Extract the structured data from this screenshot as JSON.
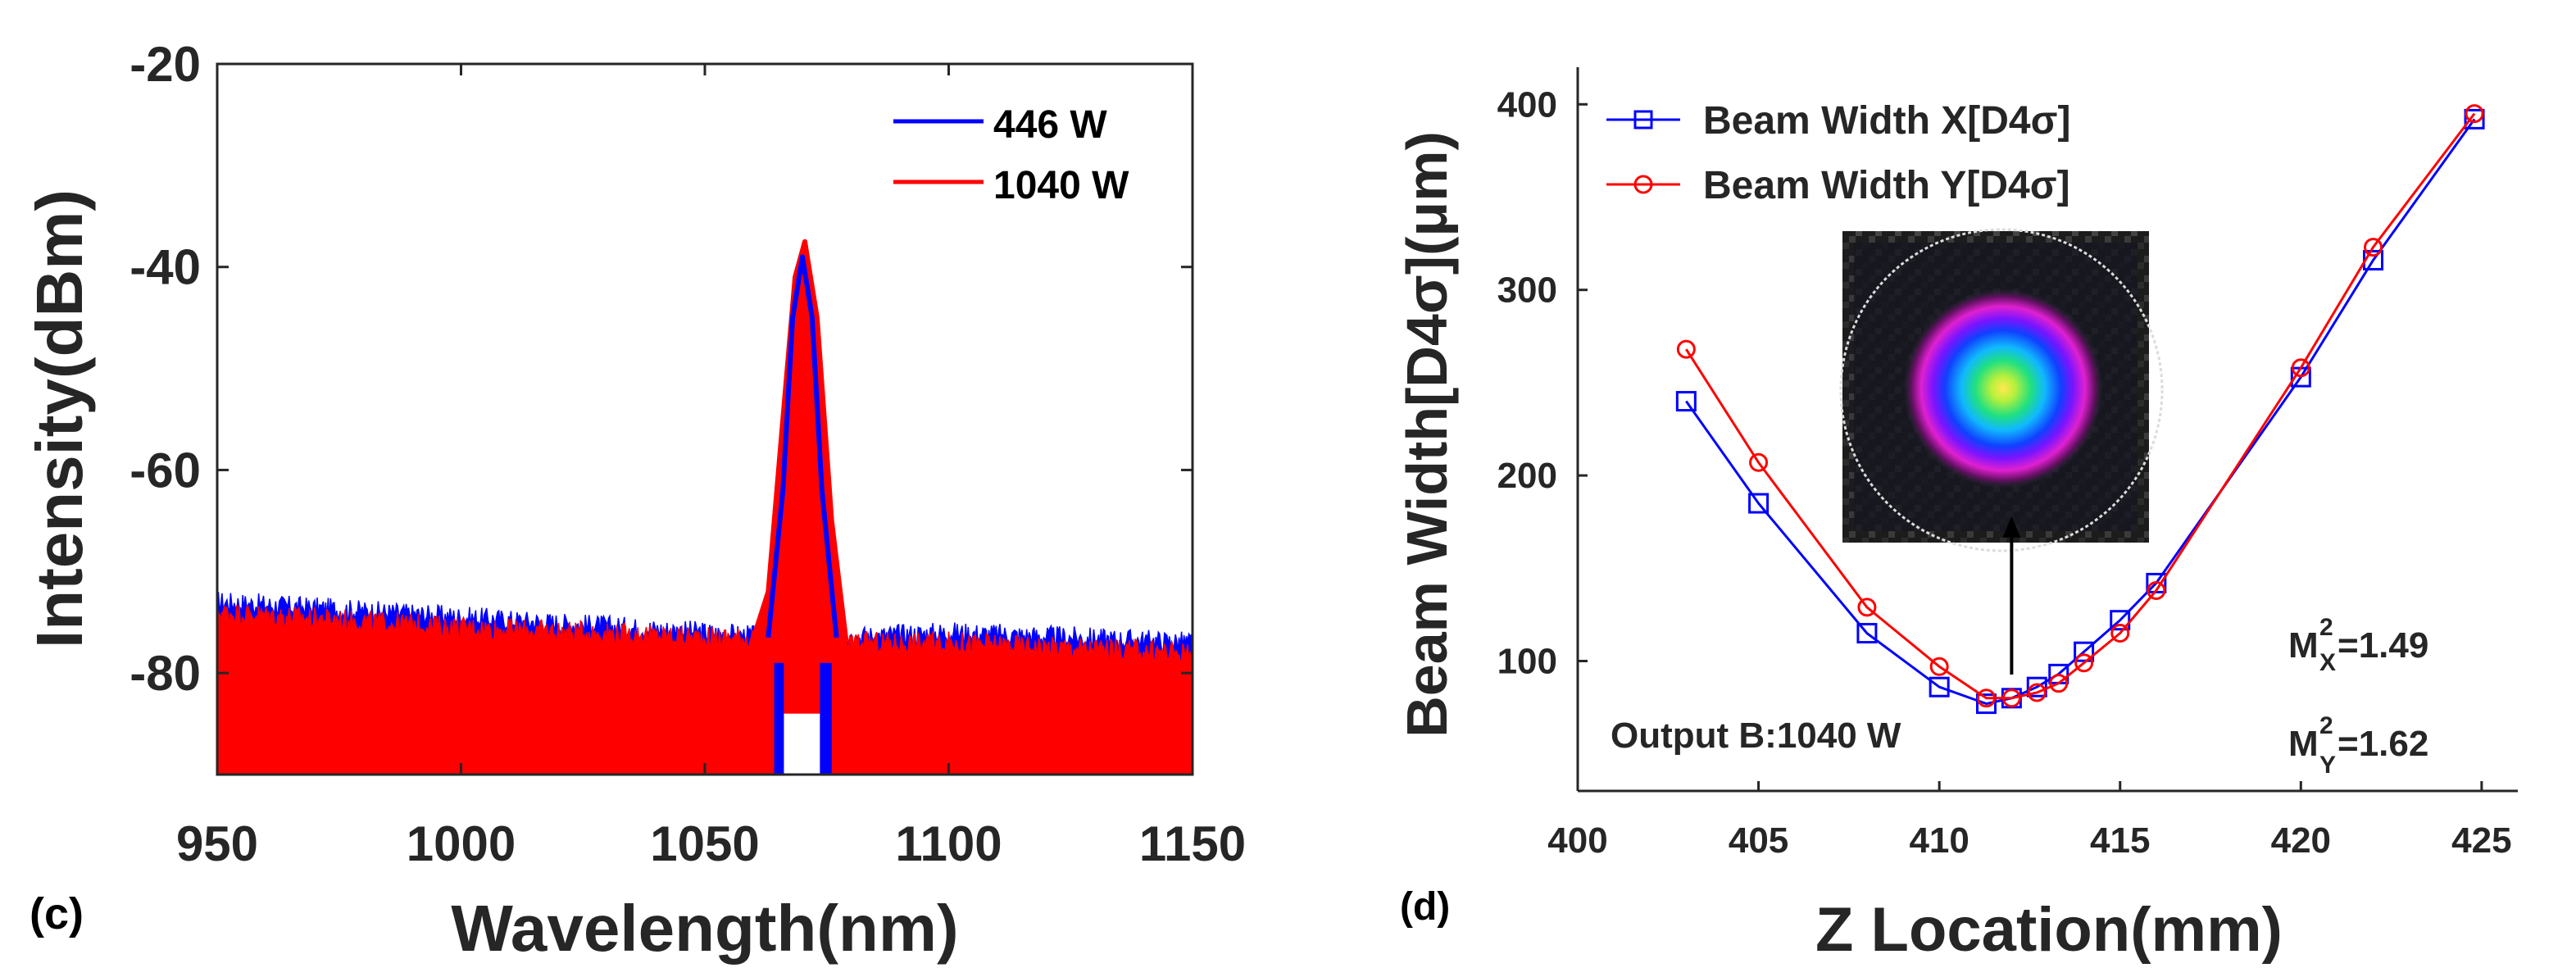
{
  "colors": {
    "blue": "#0000ff",
    "red": "#ff0000",
    "axis": "#262626",
    "text": "#262626"
  },
  "chart_data": [
    {
      "type": "line",
      "panel_label": "(c)",
      "xlabel": "Wavelength(nm)",
      "ylabel": "Intensity(dBm)",
      "xlim": [
        950,
        1150
      ],
      "ylim": [
        -90,
        -20
      ],
      "xticks": [
        950,
        1000,
        1050,
        1100,
        1150
      ],
      "xtick_labels": [
        "950",
        "1000",
        "1050",
        "1100",
        "1150"
      ],
      "yticks": [
        -20,
        -40,
        -60,
        -80
      ],
      "ytick_labels": [
        "-20",
        "-40",
        "-60",
        "-80"
      ],
      "grid": false,
      "legend_position": "top-right",
      "series": [
        {
          "name": "446 W",
          "color": "#0000ff",
          "noise_floor": {
            "x": [
              950,
              1000,
              1050,
              1063,
              1078,
              1100,
              1150
            ],
            "y": [
              -73,
              -74.5,
              -76,
              -76.5,
              -76.5,
              -76,
              -77
            ]
          },
          "peak": {
            "x": [
              1063,
              1066,
              1068,
              1070,
              1072,
              1074,
              1077
            ],
            "y": [
              -76.5,
              -62,
              -45,
              -39,
              -45,
              -62,
              -76.5
            ]
          }
        },
        {
          "name": "1040 W",
          "color": "#ff0000",
          "noise_floor": {
            "x": [
              950,
              1000,
              1050,
              1063,
              1078,
              1100,
              1150
            ],
            "y": [
              -74,
              -75.5,
              -76.5,
              -76.5,
              -77,
              -77,
              -78
            ]
          },
          "peak": {
            "x": [
              1060,
              1063,
              1066,
              1068.5,
              1070.5,
              1073,
              1076,
              1079
            ],
            "y": [
              -76.5,
              -72,
              -55,
              -41,
              -37.5,
              -45,
              -65,
              -77
            ]
          }
        }
      ]
    },
    {
      "type": "line",
      "panel_label": "(d)",
      "xlabel": "Z Location(mm)",
      "ylabel": "Beam Width[D4σ](μm)",
      "xlim": [
        400,
        426
      ],
      "ylim": [
        30,
        420
      ],
      "xticks": [
        400,
        405,
        410,
        415,
        420,
        425
      ],
      "xtick_labels": [
        "400",
        "405",
        "410",
        "415",
        "420",
        "425"
      ],
      "yticks": [
        100,
        200,
        300,
        400
      ],
      "ytick_labels": [
        "100",
        "200",
        "300",
        "400"
      ],
      "grid": false,
      "legend_position": "top-left",
      "series": [
        {
          "name": "Beam Width X[D4σ]",
          "color": "#0000ff",
          "marker": "square",
          "x": [
            403,
            405,
            408,
            410,
            411.3,
            412,
            412.7,
            413.3,
            414,
            415,
            416,
            420,
            422,
            424.8
          ],
          "y": [
            240,
            185,
            115,
            86,
            77,
            80,
            86,
            93,
            105,
            122,
            142,
            253,
            316,
            392
          ]
        },
        {
          "name": "Beam Width Y[D4σ]",
          "color": "#ff0000",
          "marker": "circle",
          "x": [
            403,
            405,
            408,
            410,
            411.3,
            412,
            412.7,
            413.3,
            414,
            415,
            416,
            420,
            422,
            424.8
          ],
          "y": [
            268,
            207,
            129,
            97,
            80,
            80,
            83,
            88,
            99,
            115,
            138,
            258,
            323,
            395
          ]
        }
      ],
      "annotations": {
        "output": "Output B:1040 W",
        "m2x_label": "M",
        "m2x_sup": "2",
        "m2x_sub": "X",
        "m2x_value": "=1.49",
        "m2y_label": "M",
        "m2y_sup": "2",
        "m2y_sub": "Y",
        "m2y_value": "=1.62",
        "arrow_at_x": 412,
        "arrow_from_y": 83,
        "arrow_to_y": 178
      }
    }
  ]
}
